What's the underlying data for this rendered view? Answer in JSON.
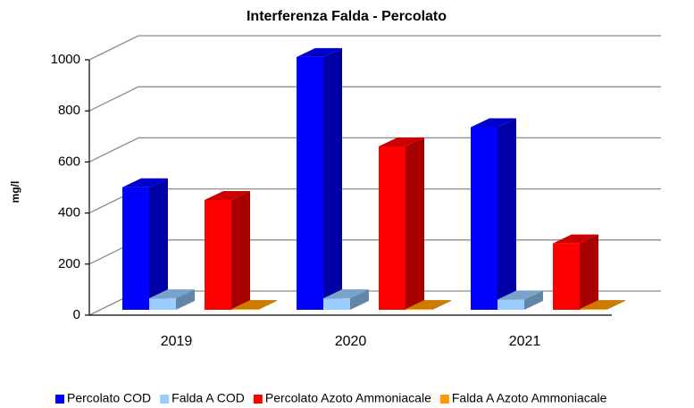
{
  "chart_data": {
    "type": "bar3d",
    "title": "Interferenza Falda - Percolato",
    "y_label": "mg/l",
    "categories": [
      "2019",
      "2020",
      "2021"
    ],
    "series": [
      {
        "name": "Percolato COD",
        "color": "#0000ff",
        "values": [
          480,
          990,
          715
        ]
      },
      {
        "name": "Falda A COD",
        "color": "#99ccff",
        "values": [
          45,
          45,
          40
        ]
      },
      {
        "name": "Percolato Azoto Ammoniacale",
        "color": "#ff0000",
        "values": [
          430,
          640,
          260
        ]
      },
      {
        "name": "Falda A Azoto Ammoniacale",
        "color": "#ff9900",
        "values": [
          3,
          3,
          3
        ]
      }
    ],
    "ylim": [
      0,
      1000
    ],
    "yticks": [
      0,
      200,
      400,
      600,
      800,
      1000
    ],
    "grid": true,
    "legend": "bottom"
  }
}
